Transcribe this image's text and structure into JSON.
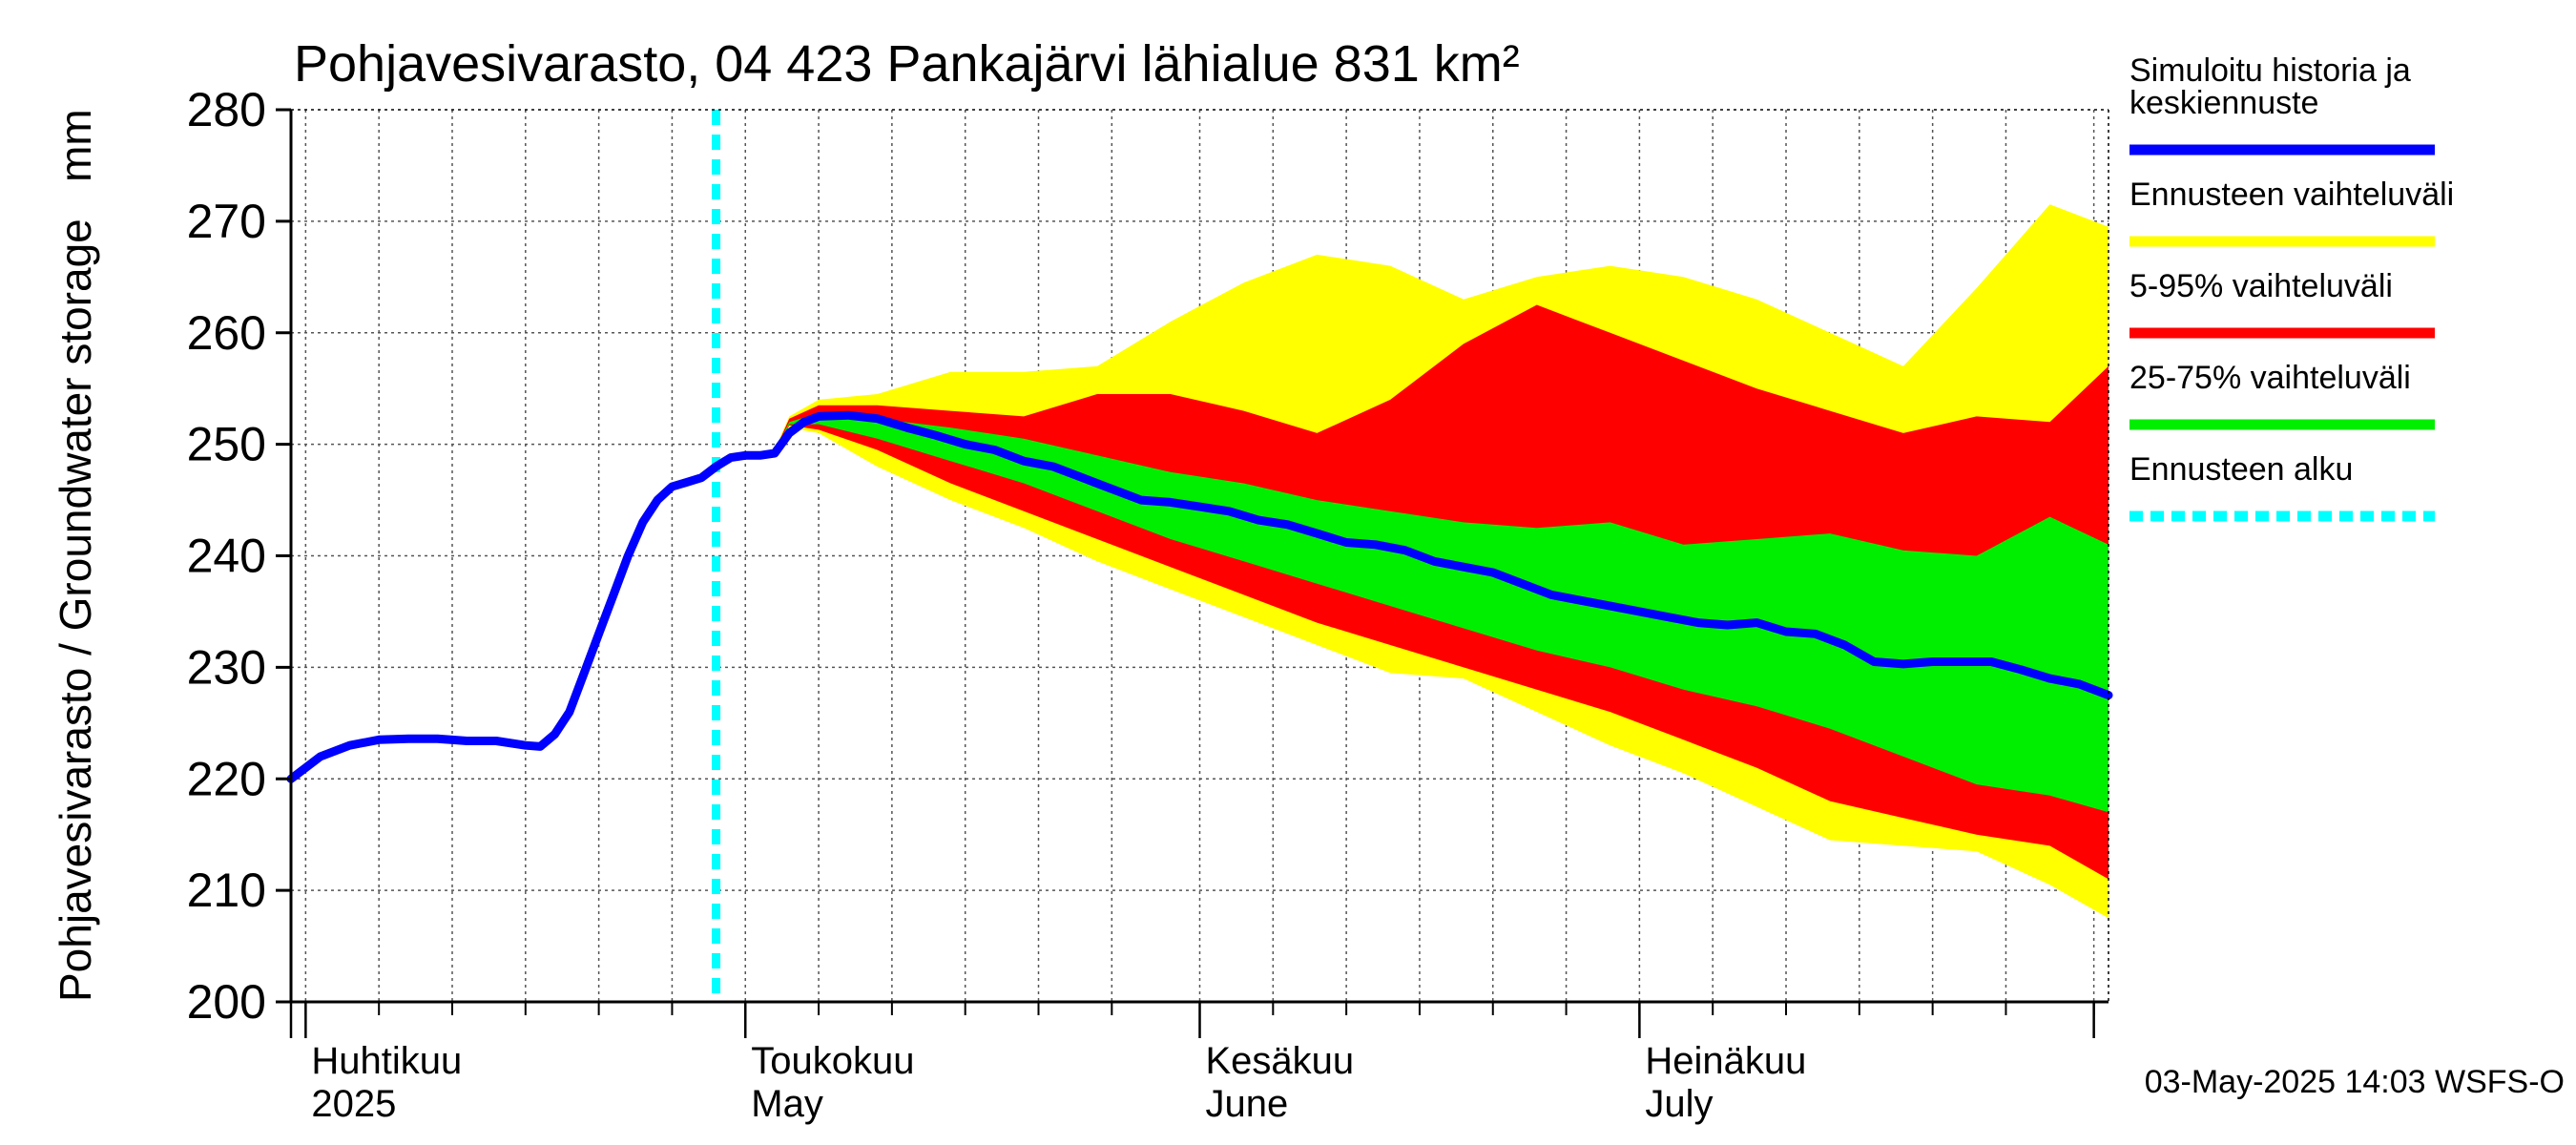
{
  "chart_data": {
    "type": "area",
    "title": "Pohjavesivarasto, 04 423 Pankajärvi lähialue 831 km²",
    "ylabel": "Pohjavesivarasto / Groundwater storage   mm",
    "ylim": [
      200,
      280
    ],
    "yticks": [
      200,
      210,
      220,
      230,
      240,
      250,
      260,
      270,
      280
    ],
    "grid": true,
    "x_domain": [
      "2025-03-31",
      "2025-08-02"
    ],
    "x_month_boundaries": [
      "2025-03-31",
      "2025-04-01",
      "2025-05-01",
      "2025-06-01",
      "2025-07-01",
      "2025-08-01"
    ],
    "x_tick_dates": [
      "2025-04-01",
      "2025-04-06",
      "2025-04-11",
      "2025-04-16",
      "2025-04-21",
      "2025-04-26",
      "2025-05-01",
      "2025-05-06",
      "2025-05-11",
      "2025-05-16",
      "2025-05-21",
      "2025-05-26",
      "2025-06-01",
      "2025-06-06",
      "2025-06-11",
      "2025-06-16",
      "2025-06-21",
      "2025-06-26",
      "2025-07-01",
      "2025-07-06",
      "2025-07-11",
      "2025-07-16",
      "2025-07-21",
      "2025-07-26",
      "2025-08-01"
    ],
    "month_labels": [
      {
        "date": "2025-04-01",
        "fi": "Huhtikuu",
        "en": "2025"
      },
      {
        "date": "2025-05-01",
        "fi": "Toukokuu",
        "en": "May"
      },
      {
        "date": "2025-06-01",
        "fi": "Kesäkuu",
        "en": "June"
      },
      {
        "date": "2025-07-01",
        "fi": "Heinäkuu",
        "en": "July"
      }
    ],
    "forecast_start": "2025-04-29",
    "legend_position": "right",
    "legend": [
      {
        "label": "Simuloitu historia ja keskiennuste",
        "lines": [
          "Simuloitu historia ja",
          "keskiennuste"
        ],
        "color": "#0000ff",
        "style": "solid"
      },
      {
        "label": "Ennusteen vaihteluväli",
        "lines": [
          "Ennusteen vaihteluväli"
        ],
        "color": "#ffff00",
        "style": "solid"
      },
      {
        "label": "5-95% vaihteluväli",
        "lines": [
          "5-95% vaihteluväli"
        ],
        "color": "#ff0000",
        "style": "solid"
      },
      {
        "label": "25-75% vaihteluväli",
        "lines": [
          "25-75% vaihteluväli"
        ],
        "color": "#00ee00",
        "style": "solid"
      },
      {
        "label": "Ennusteen alku",
        "lines": [
          "Ennusteen alku"
        ],
        "color": "#00ffff",
        "style": "dashed"
      }
    ],
    "footer": "03-May-2025 14:03 WSFS-O",
    "series": {
      "history_and_median": [
        [
          "2025-03-31",
          220.0
        ],
        [
          "2025-04-02",
          222.0
        ],
        [
          "2025-04-04",
          223.0
        ],
        [
          "2025-04-06",
          223.5
        ],
        [
          "2025-04-08",
          223.6
        ],
        [
          "2025-04-10",
          223.6
        ],
        [
          "2025-04-12",
          223.4
        ],
        [
          "2025-04-14",
          223.4
        ],
        [
          "2025-04-16",
          223.0
        ],
        [
          "2025-04-17",
          222.9
        ],
        [
          "2025-04-18",
          224.0
        ],
        [
          "2025-04-19",
          226.0
        ],
        [
          "2025-04-20",
          229.5
        ],
        [
          "2025-04-21",
          233.0
        ],
        [
          "2025-04-22",
          236.5
        ],
        [
          "2025-04-23",
          240.0
        ],
        [
          "2025-04-24",
          243.0
        ],
        [
          "2025-04-25",
          245.0
        ],
        [
          "2025-04-26",
          246.2
        ],
        [
          "2025-04-27",
          246.6
        ],
        [
          "2025-04-28",
          247.0
        ],
        [
          "2025-04-29",
          248.0
        ],
        [
          "2025-04-30",
          248.8
        ],
        [
          "2025-05-01",
          249.0
        ],
        [
          "2025-05-02",
          249.0
        ],
        [
          "2025-05-03",
          249.2
        ],
        [
          "2025-05-04",
          251.0
        ],
        [
          "2025-05-05",
          252.0
        ],
        [
          "2025-05-06",
          252.5
        ],
        [
          "2025-05-08",
          252.6
        ],
        [
          "2025-05-10",
          252.3
        ],
        [
          "2025-05-12",
          251.5
        ],
        [
          "2025-05-14",
          250.8
        ],
        [
          "2025-05-16",
          250.0
        ],
        [
          "2025-05-18",
          249.5
        ],
        [
          "2025-05-20",
          248.5
        ],
        [
          "2025-05-22",
          248.0
        ],
        [
          "2025-05-24",
          247.0
        ],
        [
          "2025-05-26",
          246.0
        ],
        [
          "2025-05-28",
          245.0
        ],
        [
          "2025-05-30",
          244.8
        ],
        [
          "2025-06-01",
          244.4
        ],
        [
          "2025-06-03",
          244.0
        ],
        [
          "2025-06-05",
          243.2
        ],
        [
          "2025-06-07",
          242.8
        ],
        [
          "2025-06-09",
          242.0
        ],
        [
          "2025-06-11",
          241.2
        ],
        [
          "2025-06-13",
          241.0
        ],
        [
          "2025-06-15",
          240.5
        ],
        [
          "2025-06-17",
          239.5
        ],
        [
          "2025-06-19",
          239.0
        ],
        [
          "2025-06-21",
          238.5
        ],
        [
          "2025-06-23",
          237.5
        ],
        [
          "2025-06-25",
          236.5
        ],
        [
          "2025-06-27",
          236.0
        ],
        [
          "2025-06-29",
          235.5
        ],
        [
          "2025-07-01",
          235.0
        ],
        [
          "2025-07-03",
          234.5
        ],
        [
          "2025-07-05",
          234.0
        ],
        [
          "2025-07-07",
          233.8
        ],
        [
          "2025-07-09",
          234.0
        ],
        [
          "2025-07-11",
          233.2
        ],
        [
          "2025-07-13",
          233.0
        ],
        [
          "2025-07-15",
          232.0
        ],
        [
          "2025-07-17",
          230.5
        ],
        [
          "2025-07-19",
          230.3
        ],
        [
          "2025-07-21",
          230.5
        ],
        [
          "2025-07-23",
          230.5
        ],
        [
          "2025-07-25",
          230.5
        ],
        [
          "2025-07-27",
          229.8
        ],
        [
          "2025-07-29",
          229.0
        ],
        [
          "2025-07-31",
          228.5
        ],
        [
          "2025-08-02",
          227.5
        ]
      ],
      "forecast_dates": [
        "2025-05-03",
        "2025-05-04",
        "2025-05-06",
        "2025-05-10",
        "2025-05-15",
        "2025-05-20",
        "2025-05-25",
        "2025-05-30",
        "2025-06-04",
        "2025-06-09",
        "2025-06-14",
        "2025-06-19",
        "2025-06-24",
        "2025-06-29",
        "2025-07-04",
        "2025-07-09",
        "2025-07-14",
        "2025-07-19",
        "2025-07-24",
        "2025-07-29",
        "2025-08-02"
      ],
      "range_min_max": {
        "upper": [
          249.5,
          252.5,
          254.0,
          254.5,
          256.5,
          256.5,
          257.0,
          261.0,
          264.5,
          267.0,
          266.0,
          263.0,
          265.0,
          266.0,
          265.0,
          263.0,
          260.0,
          257.0,
          264.0,
          271.5,
          269.5
        ],
        "lower": [
          249.0,
          251.5,
          251.0,
          248.0,
          245.0,
          242.5,
          239.5,
          237.0,
          234.5,
          232.0,
          229.5,
          229.0,
          226.0,
          223.0,
          220.5,
          217.5,
          214.5,
          214.0,
          213.5,
          210.5,
          207.5
        ]
      },
      "p5_p95": {
        "upper": [
          249.4,
          252.3,
          253.5,
          253.5,
          253.0,
          252.5,
          254.5,
          254.5,
          253.0,
          251.0,
          254.0,
          259.0,
          262.5,
          260.0,
          257.5,
          255.0,
          253.0,
          251.0,
          252.5,
          252.0,
          257.0
        ],
        "lower": [
          249.1,
          251.7,
          251.3,
          249.5,
          246.5,
          244.0,
          241.5,
          239.0,
          236.5,
          234.0,
          232.0,
          230.0,
          228.0,
          226.0,
          223.5,
          221.0,
          218.0,
          216.5,
          215.0,
          214.0,
          211.0
        ]
      },
      "p25_p75": {
        "upper": [
          249.3,
          252.0,
          252.8,
          252.3,
          251.5,
          250.5,
          249.0,
          247.5,
          246.5,
          245.0,
          244.0,
          243.0,
          242.5,
          243.0,
          241.0,
          241.5,
          242.0,
          240.5,
          240.0,
          243.5,
          241.0
        ],
        "lower": [
          249.2,
          251.8,
          251.8,
          250.5,
          248.5,
          246.5,
          244.0,
          241.5,
          239.5,
          237.5,
          235.5,
          233.5,
          231.5,
          230.0,
          228.0,
          226.5,
          224.5,
          222.0,
          219.5,
          218.5,
          217.0
        ]
      }
    }
  }
}
